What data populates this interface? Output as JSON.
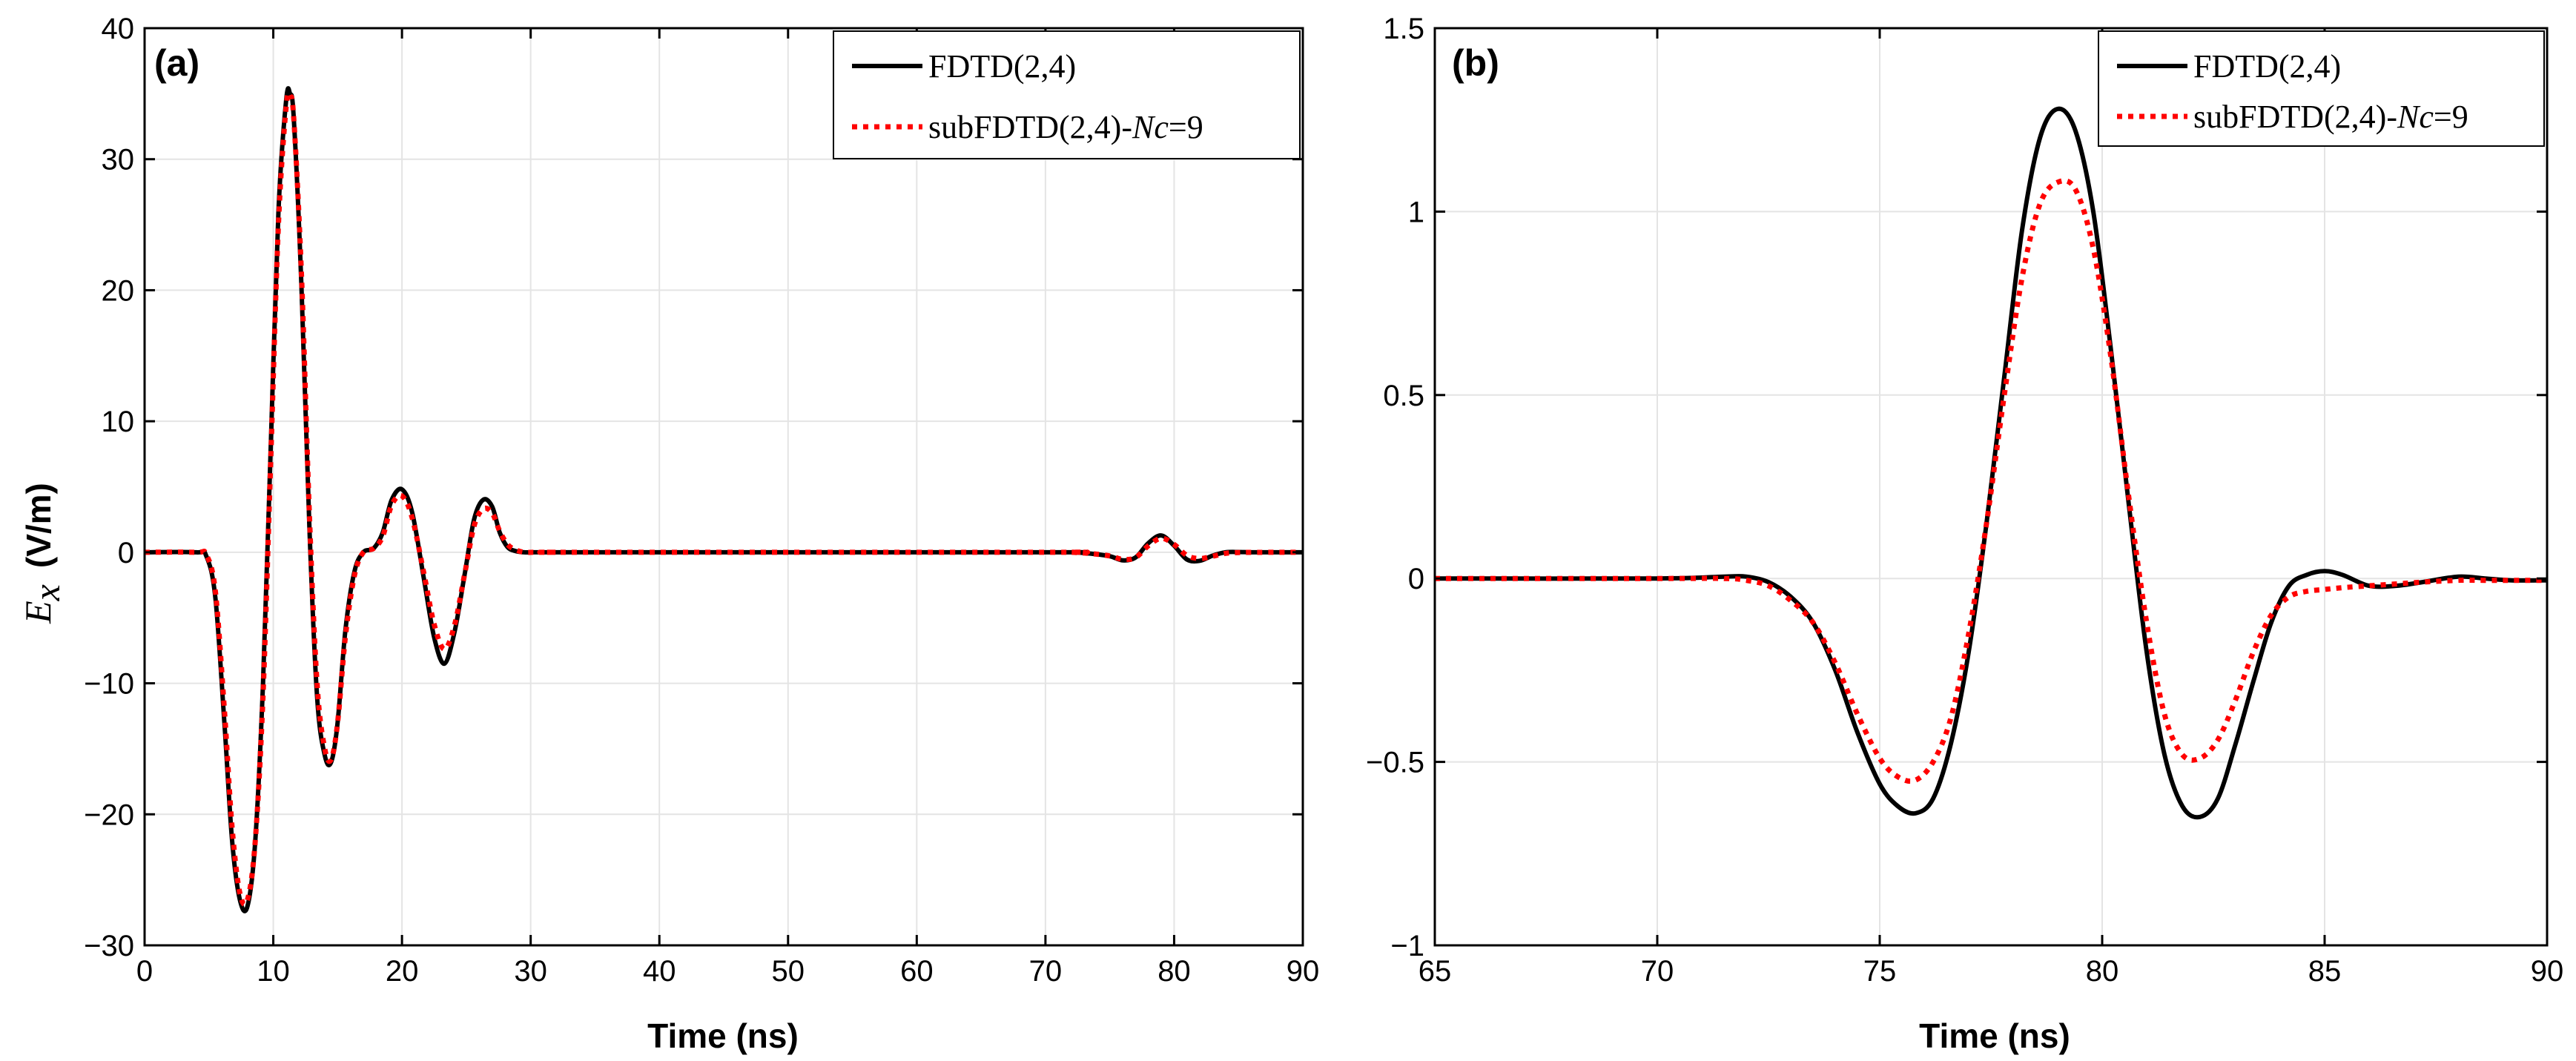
{
  "chart_data": [
    {
      "type": "line",
      "panel_label": "(a)",
      "xlabel": "Time (ns)",
      "ylabel": {
        "symbol": "E",
        "subscript": "x",
        "unit": "(V/m)"
      },
      "xlim": [
        0,
        90
      ],
      "ylim": [
        -30,
        40
      ],
      "xticks": [
        0,
        10,
        20,
        30,
        40,
        50,
        60,
        70,
        80,
        90
      ],
      "yticks": [
        -30,
        -20,
        -10,
        0,
        10,
        20,
        30,
        40
      ],
      "xtick_labels": [
        "0",
        "10",
        "20",
        "30",
        "40",
        "50",
        "60",
        "70",
        "80",
        "90"
      ],
      "ytick_labels": [
        "−30",
        "−20",
        "−10",
        "0",
        "10",
        "20",
        "30",
        "40"
      ],
      "grid": true,
      "legend": "top-right",
      "series": [
        {
          "name": "FDTD(2,4)",
          "name_parts": {
            "pre": "FDTD(2,4)",
            "italic": "",
            "post": ""
          },
          "color": "#000000",
          "style": "solid",
          "x": [
            0,
            4,
            4.8,
            5.5,
            6.2,
            6.8,
            7.4,
            8,
            8.6,
            9.2,
            9.8,
            10.4,
            11.0,
            11.3,
            11.6,
            12.2,
            12.8,
            13.4,
            14.0,
            14.5,
            15.0,
            15.6,
            16.3,
            17.0,
            17.8,
            18.5,
            19.2,
            20.0,
            20.8,
            21.7,
            22.5,
            23.3,
            24.1,
            24.9,
            25.6,
            26.3,
            27.0,
            27.6,
            28.2,
            28.8,
            29.5,
            30.2,
            31.0,
            32.0,
            34.0,
            70.0,
            72.0,
            73.5,
            75.0,
            76.0,
            77.0,
            78.0,
            79.0,
            80.0,
            81.0,
            82.0,
            83.0,
            84.0,
            85.0,
            86.0,
            88.0,
            90.0
          ],
          "y": [
            0,
            0,
            -0.3,
            -3.5,
            -13,
            -22,
            -26.5,
            -27,
            -22,
            -10,
            8,
            26,
            34.5,
            35,
            33,
            20,
            2,
            -11,
            -15.5,
            -16,
            -13,
            -6,
            -1.5,
            0,
            0.3,
            1.5,
            4,
            4.8,
            3,
            -2,
            -6.5,
            -8.5,
            -6,
            -1.5,
            2.5,
            4,
            3.5,
            1.5,
            0.4,
            0.1,
            0,
            0,
            0,
            0,
            0,
            0,
            0,
            -0.1,
            -0.3,
            -0.62,
            -0.4,
            0.7,
            1.28,
            0.5,
            -0.55,
            -0.65,
            -0.25,
            0,
            0.02,
            0,
            0,
            0
          ]
        },
        {
          "name": "subFDTD(2,4)-Nc=9",
          "name_parts": {
            "pre": "subFDTD(2,4)-",
            "italic": "Nc",
            "post": "=9"
          },
          "color": "#ff0000",
          "style": "dotted",
          "x": [
            0,
            4,
            4.8,
            5.5,
            6.2,
            6.8,
            7.4,
            8,
            8.6,
            9.2,
            9.8,
            10.4,
            11.0,
            11.3,
            11.6,
            12.2,
            12.8,
            13.4,
            14.0,
            14.5,
            15.0,
            15.6,
            16.3,
            17.0,
            17.8,
            18.5,
            19.2,
            20.0,
            20.8,
            21.7,
            22.5,
            23.3,
            24.1,
            24.9,
            25.6,
            26.3,
            27.0,
            27.6,
            28.2,
            28.8,
            29.5,
            30.2,
            31.0,
            32.0,
            34.0,
            70.0,
            72.0,
            73.5,
            75.0,
            76.0,
            77.0,
            78.0,
            79.0,
            80.0,
            81.0,
            82.0,
            83.0,
            84.0,
            85.0,
            86.0,
            88.0,
            90.0
          ],
          "y": [
            0,
            0,
            -0.2,
            -3,
            -12,
            -21,
            -26,
            -26.5,
            -22,
            -11,
            7,
            25,
            34,
            34.8,
            33,
            21,
            3,
            -10,
            -15,
            -15.8,
            -13,
            -6.5,
            -1.8,
            0,
            0.3,
            1.2,
            3.6,
            4.3,
            2.6,
            -1.6,
            -5.5,
            -7.4,
            -5.5,
            -1.5,
            2,
            3.3,
            3,
            1.6,
            0.6,
            0.2,
            0,
            0,
            0,
            0,
            0,
            0,
            0,
            -0.1,
            -0.28,
            -0.54,
            -0.4,
            0.5,
            1.07,
            0.6,
            -0.25,
            -0.48,
            -0.3,
            -0.08,
            -0.02,
            -0.01,
            0,
            0
          ]
        }
      ]
    },
    {
      "type": "line",
      "panel_label": "(b)",
      "xlabel": "Time (ns)",
      "ylabel": "",
      "xlim": [
        65,
        90
      ],
      "ylim": [
        -1,
        1.5
      ],
      "xticks": [
        65,
        70,
        75,
        80,
        85,
        90
      ],
      "yticks": [
        -1,
        -0.5,
        0,
        0.5,
        1,
        1.5
      ],
      "xtick_labels": [
        "65",
        "70",
        "75",
        "80",
        "85",
        "90"
      ],
      "ytick_labels": [
        "−1",
        "−0.5",
        "0",
        "0.5",
        "1",
        "1.5"
      ],
      "grid": true,
      "legend": "top-right",
      "series": [
        {
          "name": "FDTD(2,4)",
          "name_parts": {
            "pre": "FDTD(2,4)",
            "italic": "",
            "post": ""
          },
          "color": "#000000",
          "style": "solid",
          "x": [
            65,
            70,
            71.5,
            72.0,
            72.5,
            73.0,
            73.5,
            74.0,
            74.5,
            75.0,
            75.4,
            75.8,
            76.2,
            76.6,
            77.0,
            77.4,
            77.8,
            78.2,
            78.6,
            79.0,
            79.4,
            79.8,
            80.2,
            80.6,
            81.0,
            81.4,
            81.8,
            82.2,
            82.6,
            83.0,
            83.4,
            83.8,
            84.2,
            84.6,
            85.0,
            85.4,
            86.0,
            86.6,
            87.2,
            88.0,
            88.6,
            89.2,
            90.0
          ],
          "y": [
            0,
            0,
            0.005,
            0.005,
            -0.01,
            -0.05,
            -0.12,
            -0.25,
            -0.42,
            -0.56,
            -0.62,
            -0.64,
            -0.6,
            -0.45,
            -0.2,
            0.15,
            0.55,
            0.95,
            1.2,
            1.28,
            1.22,
            1.0,
            0.62,
            0.2,
            -0.2,
            -0.48,
            -0.62,
            -0.65,
            -0.6,
            -0.45,
            -0.28,
            -0.12,
            -0.02,
            0.01,
            0.02,
            0.01,
            -0.02,
            -0.02,
            -0.01,
            0.005,
            0.0,
            -0.005,
            -0.005
          ]
        },
        {
          "name": "subFDTD(2,4)-Nc=9",
          "name_parts": {
            "pre": "subFDTD(2,4)-",
            "italic": "Nc",
            "post": "=9"
          },
          "color": "#ff0000",
          "style": "dotted",
          "x": [
            65,
            70,
            71.5,
            72.0,
            72.5,
            73.0,
            73.5,
            74.0,
            74.5,
            75.0,
            75.4,
            75.8,
            76.2,
            76.6,
            77.0,
            77.4,
            77.8,
            78.2,
            78.6,
            79.0,
            79.4,
            79.8,
            80.2,
            80.6,
            81.0,
            81.4,
            81.8,
            82.2,
            82.6,
            83.0,
            83.4,
            83.8,
            84.2,
            84.6,
            85.0,
            85.4,
            86.0,
            86.6,
            87.2,
            88.0,
            88.6,
            89.2,
            90.0
          ],
          "y": [
            0,
            0,
            0.0,
            -0.005,
            -0.02,
            -0.06,
            -0.12,
            -0.23,
            -0.37,
            -0.49,
            -0.54,
            -0.55,
            -0.5,
            -0.38,
            -0.15,
            0.15,
            0.5,
            0.82,
            1.02,
            1.08,
            1.06,
            0.9,
            0.6,
            0.22,
            -0.12,
            -0.37,
            -0.48,
            -0.49,
            -0.44,
            -0.33,
            -0.2,
            -0.1,
            -0.05,
            -0.035,
            -0.03,
            -0.025,
            -0.02,
            -0.015,
            -0.01,
            -0.005,
            -0.005,
            -0.005,
            -0.005
          ]
        }
      ]
    }
  ]
}
